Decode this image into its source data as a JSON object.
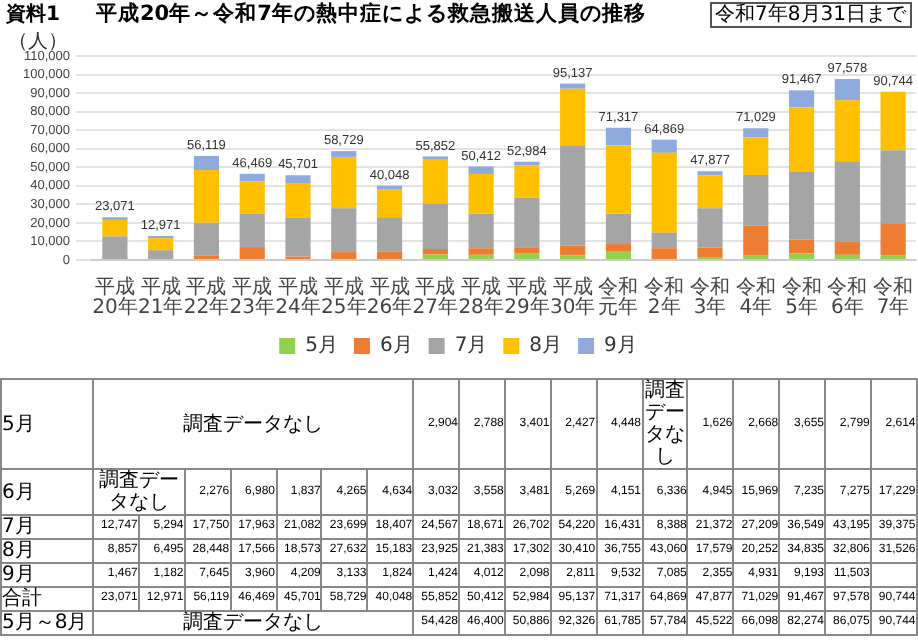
{
  "chart_data": {
    "type": "bar",
    "stacked": true,
    "title": "平成20年～令和7年の熱中症による救急搬送人員の推移",
    "categories": [
      "平成20年",
      "平成21年",
      "平成22年",
      "平成23年",
      "平成24年",
      "平成25年",
      "平成26年",
      "平成27年",
      "平成28年",
      "平成29年",
      "平成30年",
      "令和元年",
      "令和2年",
      "令和3年",
      "令和4年",
      "令和5年",
      "令和6年",
      "令和7年"
    ],
    "series": [
      {
        "name": "5月",
        "color": "#92d050",
        "values": [
          null,
          null,
          null,
          null,
          null,
          null,
          null,
          2904,
          2788,
          3401,
          2427,
          4448,
          null,
          1626,
          2668,
          3655,
          2799,
          2614
        ],
        "value_labels": [
          null,
          null,
          null,
          null,
          null,
          null,
          null,
          "2,904",
          "2,788",
          "3,401",
          "2,427",
          "4,448",
          null,
          "1,626",
          "2,668",
          "3,655",
          "2,799",
          "2,614"
        ]
      },
      {
        "name": "6月",
        "color": "#ed7d31",
        "values": [
          null,
          null,
          2276,
          6980,
          1837,
          4265,
          4634,
          3032,
          3558,
          3481,
          5269,
          4151,
          6336,
          4945,
          15969,
          7235,
          7275,
          17229
        ],
        "value_labels": [
          null,
          null,
          "2,276",
          "6,980",
          "1,837",
          "4,265",
          "4,634",
          "3,032",
          "3,558",
          "3,481",
          "5,269",
          "4,151",
          "6,336",
          "4,945",
          "15,969",
          "7,235",
          "7,275",
          "17,229"
        ]
      },
      {
        "name": "7月",
        "color": "#a5a5a5",
        "values": [
          12747,
          5294,
          17750,
          17963,
          21082,
          23699,
          18407,
          24567,
          18671,
          26702,
          54220,
          16431,
          8388,
          21372,
          27209,
          36549,
          43195,
          39375
        ],
        "value_labels": [
          "12,747",
          "5,294",
          "17,750",
          "17,963",
          "21,082",
          "23,699",
          "18,407",
          "24,567",
          "18,671",
          "26,702",
          "54,220",
          "16,431",
          "8,388",
          "21,372",
          "27,209",
          "36,549",
          "43,195",
          "39,375"
        ]
      },
      {
        "name": "8月",
        "color": "#ffc000",
        "values": [
          8857,
          6495,
          28448,
          17566,
          18573,
          27632,
          15183,
          23925,
          21383,
          17302,
          30410,
          36755,
          43060,
          17579,
          20252,
          34835,
          32806,
          31526
        ],
        "value_labels": [
          "8,857",
          "6,495",
          "28,448",
          "17,566",
          "18,573",
          "27,632",
          "15,183",
          "23,925",
          "21,383",
          "17,302",
          "30,410",
          "36,755",
          "43,060",
          "17,579",
          "20,252",
          "34,835",
          "32,806",
          "31,526"
        ]
      },
      {
        "name": "9月",
        "color": "#8faadc",
        "values": [
          1467,
          1182,
          7645,
          3960,
          4209,
          3133,
          1824,
          1424,
          4012,
          2098,
          2811,
          9532,
          7085,
          2355,
          4931,
          9193,
          11503,
          null
        ],
        "value_labels": [
          "1,467",
          "1,182",
          "7,645",
          "3,960",
          "4,209",
          "3,133",
          "1,824",
          "1,424",
          "4,012",
          "2,098",
          "2,811",
          "9,532",
          "7,085",
          "2,355",
          "4,931",
          "9,193",
          "11,503",
          null
        ]
      }
    ],
    "totals": [
      "23,071",
      "12,971",
      "56,119",
      "46,469",
      "45,701",
      "58,729",
      "40,048",
      "55,852",
      "50,412",
      "52,984",
      "95,137",
      "71,317",
      "64,869",
      "47,877",
      "71,029",
      "91,467",
      "97,578",
      "90,744"
    ],
    "ylim": [
      0,
      110000
    ],
    "yticks": [
      {
        "value": 0,
        "label": "0"
      },
      {
        "value": 10000,
        "label": "10,000"
      },
      {
        "value": 20000,
        "label": "20,000"
      },
      {
        "value": 30000,
        "label": "30,000"
      },
      {
        "value": 40000,
        "label": "40,000"
      },
      {
        "value": 50000,
        "label": "50,000"
      },
      {
        "value": 60000,
        "label": "60,000"
      },
      {
        "value": 70000,
        "label": "70,000"
      },
      {
        "value": 80000,
        "label": "80,000"
      },
      {
        "value": 90000,
        "label": "90,000"
      },
      {
        "value": 100000,
        "label": "100,000"
      },
      {
        "value": 110000,
        "label": "110,000"
      }
    ],
    "grid": "y",
    "legend": "bottom",
    "annotations": [
      "資料1",
      "令和7年8月31日まで",
      "（人）",
      "調査データなし",
      "合計",
      "5月～8月",
      "54,428",
      "46,400",
      "50,886",
      "92,326",
      "61,785",
      "57,784",
      "45,522",
      "66,098",
      "82,274",
      "86,075",
      "90,744"
    ]
  }
}
